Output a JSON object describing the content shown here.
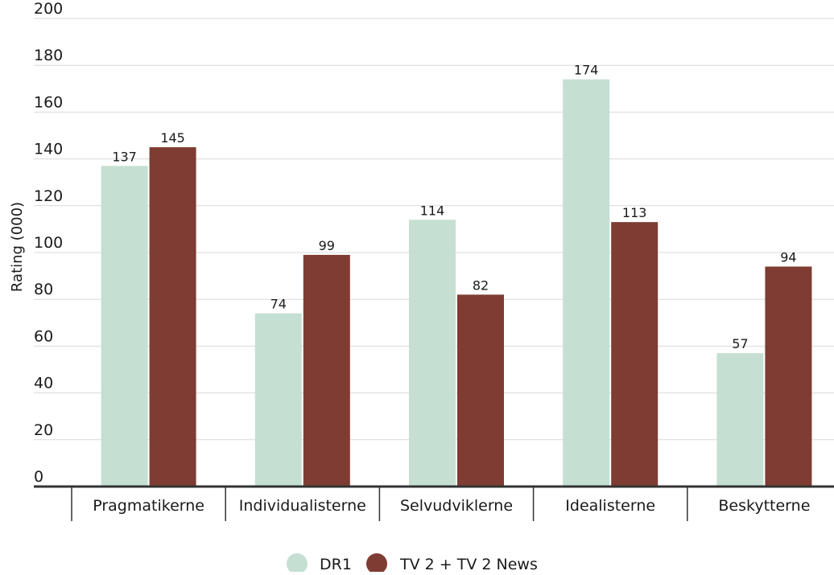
{
  "chart_data": {
    "type": "bar",
    "title": "",
    "xlabel": "",
    "ylabel": "Rating (000)",
    "ylim": [
      0,
      200
    ],
    "yticks": [
      0,
      20,
      40,
      60,
      80,
      100,
      120,
      140,
      160,
      180,
      200
    ],
    "grid": true,
    "legend_position": "bottom",
    "categories": [
      "Pragmatikerne",
      "Individualisterne",
      "Selvudviklerne",
      "Idealisterne",
      "Beskytterne"
    ],
    "series": [
      {
        "name": "DR1",
        "color": "#c5dfd2",
        "values": [
          137,
          74,
          114,
          174,
          57
        ]
      },
      {
        "name": "TV 2 + TV 2 News",
        "color": "#7f3c32",
        "values": [
          145,
          99,
          82,
          113,
          94
        ]
      }
    ]
  }
}
